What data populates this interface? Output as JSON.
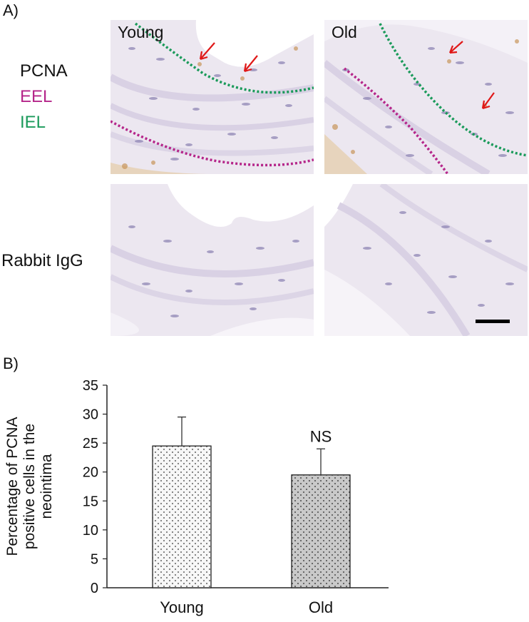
{
  "panel_a": {
    "label": "A)",
    "legend": [
      {
        "text": "PCNA",
        "color": "#111111"
      },
      {
        "text": "EEL",
        "color": "#b5268a"
      },
      {
        "text": "IEL",
        "color": "#1a9a5a"
      }
    ],
    "row_labels": {
      "bottom": "Rabbit IgG"
    },
    "micrographs": {
      "top_left": {
        "label": "Young"
      },
      "top_right": {
        "label": "Old"
      }
    },
    "colors": {
      "tissue": "#e9e4ef",
      "nuclei": "#8f86b5",
      "brown": "#c8955a",
      "arrow": "#e01818",
      "eel": "#b5268a",
      "iel": "#1a9a5a"
    }
  },
  "panel_b": {
    "label": "B)"
  },
  "chart_data": {
    "type": "bar",
    "categories": [
      "Young",
      "Old"
    ],
    "values": [
      24.5,
      19.5
    ],
    "errors": [
      5.0,
      4.5
    ],
    "ylabel_lines": [
      "Percentage of PCNA",
      "positive cells in the",
      "neointima"
    ],
    "ylim": [
      0,
      35
    ],
    "yticks": [
      0,
      5,
      10,
      15,
      20,
      25,
      30,
      35
    ],
    "annotation": {
      "text": "NS",
      "category": "Old"
    },
    "bar_fills": [
      "#f7f7f7",
      "#c9c9c9"
    ],
    "grid": false
  }
}
